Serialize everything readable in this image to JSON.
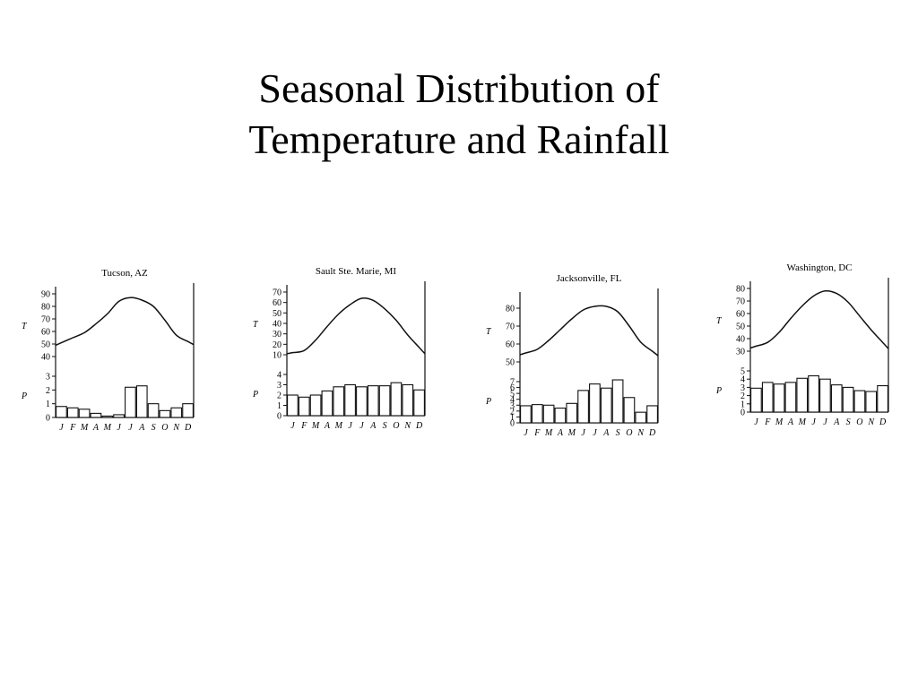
{
  "slide": {
    "title_line1": "Seasonal Distribution of",
    "title_line2": "Temperature and Rainfall"
  },
  "months": [
    "J",
    "F",
    "M",
    "A",
    "M",
    "J",
    "J",
    "A",
    "S",
    "O",
    "N",
    "D"
  ],
  "chart_data": [
    {
      "type": "bar+line",
      "title": "Tucson, AZ",
      "temp_label": "T",
      "precip_label": "P",
      "temp_ticks": [
        40,
        50,
        60,
        70,
        80,
        90
      ],
      "temp_range": [
        40,
        90
      ],
      "precip_ticks": [
        0,
        1,
        2,
        3
      ],
      "precip_range": [
        0,
        3
      ],
      "categories": [
        "J",
        "F",
        "M",
        "A",
        "M",
        "J",
        "J",
        "A",
        "S",
        "O",
        "N",
        "D"
      ],
      "temperature": [
        51,
        55,
        59,
        66,
        74,
        84,
        87,
        85,
        80,
        69,
        57,
        52
      ],
      "precipitation": [
        0.8,
        0.7,
        0.6,
        0.3,
        0.1,
        0.2,
        2.2,
        2.3,
        1.0,
        0.5,
        0.7,
        1.0
      ]
    },
    {
      "type": "bar+line",
      "title": "Sault Ste. Marie, MI",
      "temp_label": "T",
      "precip_label": "P",
      "temp_ticks": [
        10,
        20,
        30,
        40,
        50,
        60,
        70
      ],
      "temp_range": [
        10,
        70
      ],
      "precip_ticks": [
        0,
        1,
        2,
        3,
        4
      ],
      "precip_range": [
        0,
        4
      ],
      "categories": [
        "J",
        "F",
        "M",
        "A",
        "M",
        "J",
        "J",
        "A",
        "S",
        "O",
        "N",
        "D"
      ],
      "temperature": [
        12,
        14,
        24,
        37,
        49,
        58,
        64,
        62,
        54,
        43,
        29,
        17
      ],
      "precipitation": [
        2.0,
        1.8,
        2.0,
        2.4,
        2.8,
        3.0,
        2.8,
        2.9,
        2.9,
        3.2,
        3.0,
        2.5
      ]
    },
    {
      "type": "bar+line",
      "title": "Jacksonville, FL",
      "temp_label": "T",
      "precip_label": "P",
      "temp_ticks": [
        50,
        60,
        70,
        80
      ],
      "temp_range": [
        50,
        85
      ],
      "precip_ticks": [
        0,
        1,
        2,
        3,
        4,
        5,
        6,
        7
      ],
      "precip_range": [
        0,
        7
      ],
      "categories": [
        "J",
        "F",
        "M",
        "A",
        "M",
        "J",
        "J",
        "A",
        "S",
        "O",
        "N",
        "D"
      ],
      "temperature": [
        55,
        57,
        62,
        68,
        74,
        79,
        81,
        81,
        78,
        70,
        61,
        56
      ],
      "precipitation": [
        2.9,
        3.1,
        3.0,
        2.5,
        3.3,
        5.5,
        6.6,
        5.9,
        7.3,
        4.3,
        1.8,
        2.9
      ]
    },
    {
      "type": "bar+line",
      "title": "Washington, DC",
      "temp_label": "T",
      "precip_label": "P",
      "temp_ticks": [
        30,
        40,
        50,
        60,
        70,
        80
      ],
      "temp_range": [
        30,
        80
      ],
      "precip_ticks": [
        0,
        1,
        2,
        3,
        4,
        5
      ],
      "precip_range": [
        0,
        5
      ],
      "categories": [
        "J",
        "F",
        "M",
        "A",
        "M",
        "J",
        "J",
        "A",
        "S",
        "O",
        "N",
        "D"
      ],
      "temperature": [
        34,
        37,
        45,
        56,
        66,
        74,
        78,
        76,
        69,
        58,
        47,
        37
      ],
      "precipitation": [
        2.9,
        3.6,
        3.4,
        3.6,
        4.1,
        4.4,
        4.0,
        3.3,
        3.0,
        2.6,
        2.5,
        3.2
      ]
    }
  ]
}
